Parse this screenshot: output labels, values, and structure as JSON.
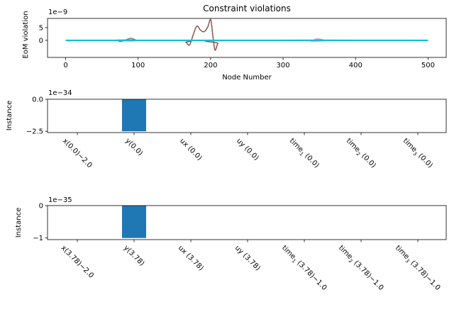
{
  "chart_data": [
    {
      "type": "line",
      "title": "Constraint violations",
      "xlabel": "Node Number",
      "ylabel": "EoM violation",
      "offset_text": "1e−9",
      "xlim": [
        -25,
        525
      ],
      "ylim": [
        -6.7,
        8.6
      ],
      "xticks": [
        0,
        100,
        200,
        300,
        400,
        500
      ],
      "yticks": [
        0,
        5
      ],
      "grid": false,
      "series": [
        {
          "color": "#1f77b4",
          "x": [
            0,
            500
          ],
          "y": [
            0,
            0
          ]
        },
        {
          "color": "#ff7f0e",
          "x": [
            0,
            500
          ],
          "y": [
            0,
            0
          ]
        },
        {
          "color": "#2ca02c",
          "x": [
            0,
            500
          ],
          "y": [
            0,
            0
          ]
        },
        {
          "color": "#d62728",
          "x": [
            0,
            500
          ],
          "y": [
            0,
            0
          ]
        },
        {
          "color": "#9467bd",
          "x": [
            0,
            80,
            88,
            94,
            100,
            500
          ],
          "y": [
            0,
            0,
            0.2,
            -0.2,
            0,
            0
          ]
        },
        {
          "color": "#8c564b",
          "x": [
            0,
            160,
            166,
            171,
            176,
            181,
            186,
            191,
            196,
            200,
            203,
            206,
            210,
            215,
            500
          ],
          "y": [
            0,
            0,
            -0.8,
            -1.8,
            2.2,
            5.6,
            4.0,
            3.4,
            5.2,
            8.2,
            2.0,
            -3.8,
            -1.2,
            0,
            0
          ]
        },
        {
          "color": "#e377c2",
          "x": [
            0,
            330,
            338,
            346,
            354,
            362,
            500
          ],
          "y": [
            0,
            0,
            -0.3,
            0.5,
            0.3,
            0,
            0
          ]
        },
        {
          "color": "#7f7f7f",
          "x": [
            0,
            65,
            75,
            83,
            90,
            96,
            102,
            500
          ],
          "y": [
            0,
            0,
            -0.5,
            0.2,
            0.8,
            0.3,
            0,
            0
          ]
        },
        {
          "color": "#bcbd22",
          "x": [
            0,
            500
          ],
          "y": [
            0,
            0
          ]
        },
        {
          "color": "#17becf",
          "x": [
            0,
            500
          ],
          "y": [
            0,
            0
          ]
        }
      ]
    },
    {
      "type": "bar",
      "ylabel": "Instance",
      "offset_text": "1e−34",
      "ylim": [
        -2.6,
        0
      ],
      "yticks": [
        {
          "v": 0,
          "label": "0.0"
        },
        {
          "v": -2.5,
          "label": "−2.5"
        }
      ],
      "color": "#1f77b4",
      "categories": [
        {
          "base": "x(0.0)−2.0"
        },
        {
          "base": "y(0.0)"
        },
        {
          "base": "ux (0.0)"
        },
        {
          "base": "uy (0.0)"
        },
        {
          "base": "time",
          "sub": "1",
          "rest": " (0.0)"
        },
        {
          "base": "time",
          "sub": "2",
          "rest": " (0.0)"
        },
        {
          "base": "time",
          "sub": "3",
          "rest": " (0.0)"
        }
      ],
      "values": [
        0,
        -2.5,
        0,
        0,
        0,
        0,
        0
      ]
    },
    {
      "type": "bar",
      "ylabel": "Instance",
      "offset_text": "1e−35",
      "ylim": [
        -1.05,
        0
      ],
      "yticks": [
        {
          "v": 0,
          "label": "0"
        },
        {
          "v": -1,
          "label": "−1"
        }
      ],
      "color": "#1f77b4",
      "categories": [
        {
          "base": "x(3.78)−2.0"
        },
        {
          "base": "y(3.78)"
        },
        {
          "base": "ux (3.78)"
        },
        {
          "base": "uy (3.78)"
        },
        {
          "base": "time",
          "sub": "1",
          "rest": " (3.78)−1.0"
        },
        {
          "base": "time",
          "sub": "2",
          "rest": " (3.78)−1.0"
        },
        {
          "base": "time",
          "sub": "3",
          "rest": " (3.78)−1.0"
        }
      ],
      "values": [
        0,
        -1,
        0,
        0,
        0,
        0,
        0
      ]
    }
  ]
}
